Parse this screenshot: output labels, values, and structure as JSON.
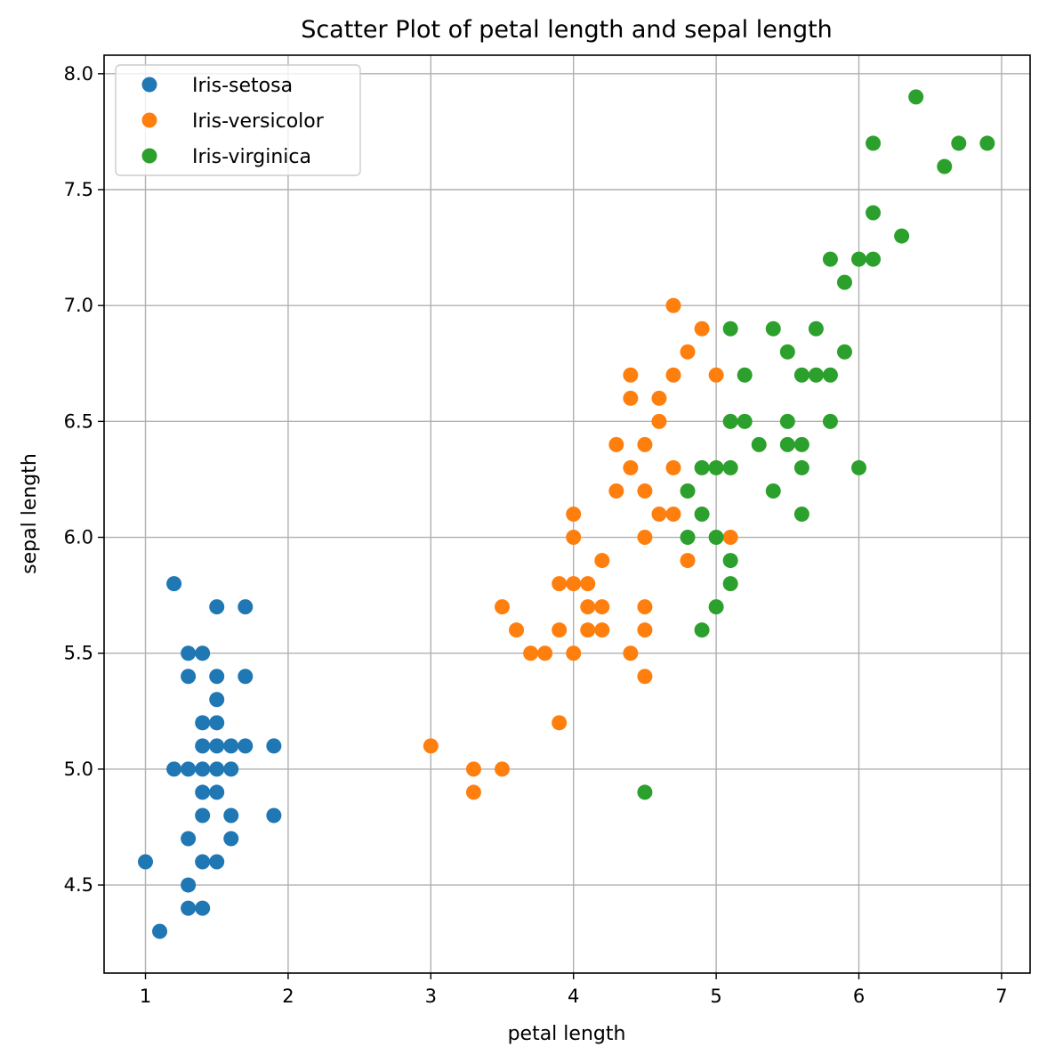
{
  "chart_data": {
    "type": "scatter",
    "title": "Scatter Plot of petal length and sepal length",
    "xlabel": "petal length",
    "ylabel": "sepal length",
    "xlim": [
      0.71,
      7.2
    ],
    "ylim": [
      4.12,
      8.08
    ],
    "xticks": [
      1,
      2,
      3,
      4,
      5,
      6,
      7
    ],
    "xtick_labels": [
      "1",
      "2",
      "3",
      "4",
      "5",
      "6",
      "7"
    ],
    "yticks": [
      4.5,
      5.0,
      5.5,
      6.0,
      6.5,
      7.0,
      7.5,
      8.0
    ],
    "ytick_labels": [
      "4.5",
      "5.0",
      "5.5",
      "6.0",
      "6.5",
      "7.0",
      "7.5",
      "8.0"
    ],
    "grid": true,
    "legend_position": "top-left",
    "series": [
      {
        "name": "Iris-setosa",
        "color": "#1f77b4",
        "points": [
          [
            1.0,
            4.6
          ],
          [
            1.1,
            4.3
          ],
          [
            1.2,
            5.8
          ],
          [
            1.2,
            5.0
          ],
          [
            1.3,
            5.5
          ],
          [
            1.3,
            5.4
          ],
          [
            1.3,
            5.0
          ],
          [
            1.3,
            4.7
          ],
          [
            1.3,
            4.5
          ],
          [
            1.3,
            4.4
          ],
          [
            1.4,
            5.5
          ],
          [
            1.4,
            5.2
          ],
          [
            1.4,
            5.1
          ],
          [
            1.4,
            5.0
          ],
          [
            1.4,
            4.9
          ],
          [
            1.4,
            4.8
          ],
          [
            1.4,
            4.6
          ],
          [
            1.4,
            4.4
          ],
          [
            1.5,
            5.7
          ],
          [
            1.5,
            5.4
          ],
          [
            1.5,
            5.3
          ],
          [
            1.5,
            5.2
          ],
          [
            1.5,
            5.1
          ],
          [
            1.5,
            5.0
          ],
          [
            1.5,
            4.9
          ],
          [
            1.5,
            4.6
          ],
          [
            1.6,
            5.1
          ],
          [
            1.6,
            5.0
          ],
          [
            1.6,
            4.8
          ],
          [
            1.6,
            4.7
          ],
          [
            1.7,
            5.7
          ],
          [
            1.7,
            5.4
          ],
          [
            1.7,
            5.1
          ],
          [
            1.9,
            5.1
          ],
          [
            1.9,
            4.8
          ]
        ]
      },
      {
        "name": "Iris-versicolor",
        "color": "#ff7f0e",
        "points": [
          [
            3.0,
            5.1
          ],
          [
            3.3,
            5.0
          ],
          [
            3.3,
            4.9
          ],
          [
            3.5,
            5.7
          ],
          [
            3.5,
            5.0
          ],
          [
            3.6,
            5.6
          ],
          [
            3.7,
            5.5
          ],
          [
            3.8,
            5.5
          ],
          [
            3.9,
            5.8
          ],
          [
            3.9,
            5.6
          ],
          [
            3.9,
            5.2
          ],
          [
            4.0,
            6.1
          ],
          [
            4.0,
            6.0
          ],
          [
            4.0,
            5.8
          ],
          [
            4.0,
            5.5
          ],
          [
            4.1,
            5.8
          ],
          [
            4.1,
            5.7
          ],
          [
            4.1,
            5.6
          ],
          [
            4.2,
            5.9
          ],
          [
            4.2,
            5.7
          ],
          [
            4.2,
            5.6
          ],
          [
            4.3,
            6.4
          ],
          [
            4.3,
            6.2
          ],
          [
            4.4,
            6.7
          ],
          [
            4.4,
            6.6
          ],
          [
            4.4,
            6.3
          ],
          [
            4.4,
            5.5
          ],
          [
            4.5,
            6.4
          ],
          [
            4.5,
            6.2
          ],
          [
            4.5,
            6.0
          ],
          [
            4.5,
            5.7
          ],
          [
            4.5,
            5.6
          ],
          [
            4.5,
            5.4
          ],
          [
            4.6,
            6.6
          ],
          [
            4.6,
            6.5
          ],
          [
            4.6,
            6.1
          ],
          [
            4.7,
            7.0
          ],
          [
            4.7,
            6.7
          ],
          [
            4.7,
            6.3
          ],
          [
            4.7,
            6.1
          ],
          [
            4.8,
            6.8
          ],
          [
            4.8,
            5.9
          ],
          [
            4.9,
            6.9
          ],
          [
            5.0,
            6.7
          ],
          [
            5.1,
            6.0
          ]
        ]
      },
      {
        "name": "Iris-virginica",
        "color": "#2ca02c",
        "points": [
          [
            4.5,
            4.9
          ],
          [
            4.8,
            6.2
          ],
          [
            4.8,
            6.0
          ],
          [
            4.9,
            6.3
          ],
          [
            4.9,
            6.1
          ],
          [
            4.9,
            5.6
          ],
          [
            5.0,
            6.3
          ],
          [
            5.0,
            6.0
          ],
          [
            5.0,
            5.7
          ],
          [
            5.1,
            6.9
          ],
          [
            5.1,
            6.5
          ],
          [
            5.1,
            6.3
          ],
          [
            5.1,
            5.9
          ],
          [
            5.1,
            5.8
          ],
          [
            5.2,
            6.7
          ],
          [
            5.2,
            6.5
          ],
          [
            5.3,
            6.4
          ],
          [
            5.4,
            6.9
          ],
          [
            5.4,
            6.2
          ],
          [
            5.5,
            6.8
          ],
          [
            5.5,
            6.5
          ],
          [
            5.5,
            6.4
          ],
          [
            5.6,
            6.7
          ],
          [
            5.6,
            6.4
          ],
          [
            5.6,
            6.3
          ],
          [
            5.6,
            6.1
          ],
          [
            5.7,
            6.9
          ],
          [
            5.7,
            6.7
          ],
          [
            5.8,
            7.2
          ],
          [
            5.8,
            6.7
          ],
          [
            5.8,
            6.5
          ],
          [
            5.9,
            7.1
          ],
          [
            5.9,
            6.8
          ],
          [
            6.0,
            7.2
          ],
          [
            6.0,
            6.3
          ],
          [
            6.1,
            7.7
          ],
          [
            6.1,
            7.4
          ],
          [
            6.1,
            7.2
          ],
          [
            6.3,
            7.3
          ],
          [
            6.4,
            7.9
          ],
          [
            6.6,
            7.6
          ],
          [
            6.7,
            7.7
          ],
          [
            6.9,
            7.7
          ]
        ]
      }
    ]
  }
}
